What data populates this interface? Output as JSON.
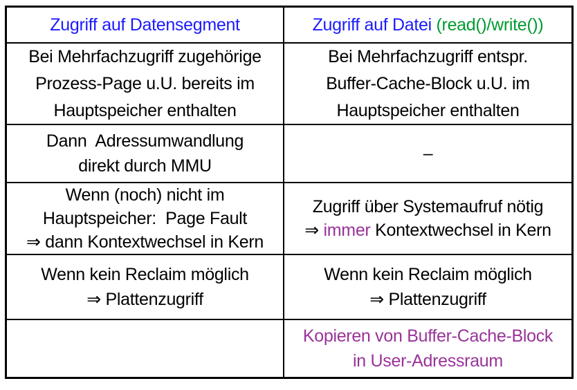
{
  "palette": {
    "blue": "#1b1bff",
    "green": "#009b30",
    "purple": "#993399",
    "black": "#000000"
  },
  "table": {
    "rows": [
      {
        "header": true,
        "cells": [
          {
            "lines": [
              [
                {
                  "text": "Zugriff auf Datensegment",
                  "color": "blue"
                }
              ]
            ]
          },
          {
            "lines": [
              [
                {
                  "text": "Zugriff auf Datei ",
                  "color": "blue"
                },
                {
                  "text": "(read()/write())",
                  "color": "green"
                }
              ]
            ]
          }
        ]
      },
      {
        "cells": [
          {
            "lines": [
              [
                {
                  "text": "Bei Mehrfachzugriff zugehörige",
                  "color": "black"
                }
              ],
              [
                {
                  "text": "Prozess-Page u.U. bereits im",
                  "color": "black"
                }
              ],
              [
                {
                  "text": "Hauptspeicher enthalten",
                  "color": "black"
                }
              ]
            ]
          },
          {
            "lines": [
              [
                {
                  "text": "Bei Mehrfachzugriff entspr.",
                  "color": "black"
                }
              ],
              [
                {
                  "text": "Buffer-Cache-Block u.U. im",
                  "color": "black"
                }
              ],
              [
                {
                  "text": "Hauptspeicher enthalten",
                  "color": "black"
                }
              ]
            ]
          }
        ]
      },
      {
        "cells": [
          {
            "lines": [
              [
                {
                  "text": "Dann  Adressumwandlung",
                  "color": "black"
                }
              ],
              [
                {
                  "text": "direkt durch MMU",
                  "color": "black"
                }
              ]
            ]
          },
          {
            "lines": [
              [
                {
                  "text": "–",
                  "color": "black"
                }
              ]
            ]
          }
        ]
      },
      {
        "cells": [
          {
            "lines": [
              [
                {
                  "text": "Wenn (noch) nicht im",
                  "color": "black"
                }
              ],
              [
                {
                  "text": "Hauptspeicher:  Page Fault",
                  "color": "black"
                }
              ],
              [
                {
                  "text": "⇒ dann Kontextwechsel in Kern",
                  "color": "black"
                }
              ]
            ]
          },
          {
            "lines": [
              [
                {
                  "text": "Zugriff über Systemaufruf nötig",
                  "color": "black"
                }
              ],
              [
                {
                  "text": "⇒ ",
                  "color": "black"
                },
                {
                  "text": "immer",
                  "color": "purple"
                },
                {
                  "text": " Kontextwechsel in Kern",
                  "color": "black"
                }
              ]
            ]
          }
        ]
      },
      {
        "cells": [
          {
            "lines": [
              [
                {
                  "text": "Wenn kein Reclaim möglich",
                  "color": "black"
                }
              ],
              [
                {
                  "text": "⇒ Plattenzugriff",
                  "color": "black"
                }
              ]
            ]
          },
          {
            "lines": [
              [
                {
                  "text": "Wenn kein Reclaim möglich",
                  "color": "black"
                }
              ],
              [
                {
                  "text": "⇒ Plattenzugriff",
                  "color": "black"
                }
              ]
            ]
          }
        ]
      },
      {
        "cells": [
          {
            "lines": []
          },
          {
            "lines": [
              [
                {
                  "text": "Kopieren von Buffer-Cache-Block",
                  "color": "purple"
                }
              ],
              [
                {
                  "text": "in User-Adressraum",
                  "color": "purple"
                }
              ]
            ]
          }
        ]
      }
    ]
  }
}
